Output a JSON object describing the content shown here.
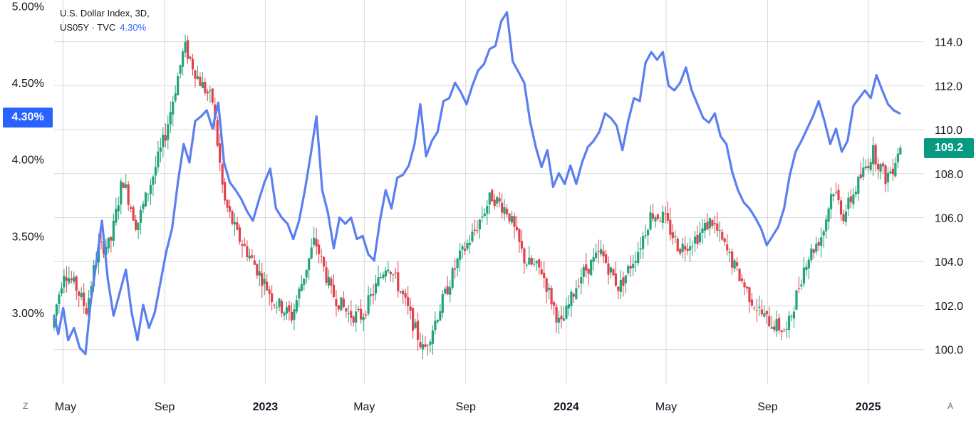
{
  "legend": {
    "line1": "U.S. Dollar Index, 3D,",
    "line2_prefix": "US05Y · TVC",
    "line2_value": "4.30%"
  },
  "badges": {
    "left_value": "4.30%",
    "right_value": "109.2"
  },
  "corners": {
    "left": "Z",
    "right": "A"
  },
  "colors": {
    "line": "#5b7ff0",
    "left_badge": "#2962ff",
    "right_badge": "#089981",
    "up": "#22a37b",
    "down": "#e0434d"
  },
  "chart_data": {
    "type": "candlestick+line",
    "x_ticks": [
      {
        "label": "May",
        "date": "2022-05-01"
      },
      {
        "label": "Sep",
        "date": "2022-09-01"
      },
      {
        "label": "2023",
        "date": "2023-01-01",
        "bold": true
      },
      {
        "label": "May",
        "date": "2023-05-01"
      },
      {
        "label": "Sep",
        "date": "2023-09-01"
      },
      {
        "label": "2024",
        "date": "2024-01-01",
        "bold": true
      },
      {
        "label": "May",
        "date": "2024-05-01"
      },
      {
        "label": "Sep",
        "date": "2024-09-01"
      },
      {
        "label": "2025",
        "date": "2025-01-01",
        "bold": true
      }
    ],
    "left_axis": {
      "series": "US05Y",
      "ticks": [
        "3.00%",
        "3.50%",
        "4.00%",
        "4.50%",
        "5.00%"
      ],
      "tick_values": [
        3.0,
        3.5,
        4.0,
        4.5,
        5.0
      ],
      "range": [
        2.53,
        5.04
      ]
    },
    "right_axis": {
      "series": "U.S. Dollar Index",
      "ticks": [
        "100.0",
        "102.0",
        "104.0",
        "106.0",
        "108.0",
        "110.0",
        "112.0",
        "114.0"
      ],
      "tick_values": [
        100,
        102,
        104,
        106,
        108,
        110,
        112,
        114
      ],
      "range": [
        98.4,
        115.9
      ]
    },
    "dxy_anchors": [
      [
        "2022-04-20",
        101.0
      ],
      [
        "2022-05-05",
        103.6
      ],
      [
        "2022-05-20",
        102.8
      ],
      [
        "2022-06-01",
        101.8
      ],
      [
        "2022-06-15",
        104.6
      ],
      [
        "2022-06-30",
        104.8
      ],
      [
        "2022-07-15",
        107.8
      ],
      [
        "2022-08-01",
        105.6
      ],
      [
        "2022-08-20",
        107.8
      ],
      [
        "2022-09-05",
        109.8
      ],
      [
        "2022-09-28",
        113.8
      ],
      [
        "2022-10-15",
        112.3
      ],
      [
        "2022-11-01",
        111.3
      ],
      [
        "2022-11-15",
        106.8
      ],
      [
        "2022-12-01",
        105.2
      ],
      [
        "2022-12-20",
        104.0
      ],
      [
        "2023-01-15",
        102.2
      ],
      [
        "2023-02-05",
        101.5
      ],
      [
        "2023-03-05",
        105.0
      ],
      [
        "2023-03-25",
        102.6
      ],
      [
        "2023-04-15",
        101.6
      ],
      [
        "2023-05-01",
        101.5
      ],
      [
        "2023-05-20",
        103.0
      ],
      [
        "2023-06-01",
        104.0
      ],
      [
        "2023-06-20",
        102.4
      ],
      [
        "2023-07-15",
        99.9
      ],
      [
        "2023-08-05",
        102.0
      ],
      [
        "2023-08-25",
        104.0
      ],
      [
        "2023-09-15",
        105.4
      ],
      [
        "2023-10-05",
        107.0
      ],
      [
        "2023-10-25",
        106.3
      ],
      [
        "2023-11-15",
        104.0
      ],
      [
        "2023-12-05",
        103.6
      ],
      [
        "2023-12-28",
        101.0
      ],
      [
        "2024-01-20",
        103.3
      ],
      [
        "2024-02-15",
        104.4
      ],
      [
        "2024-03-08",
        102.8
      ],
      [
        "2024-04-01",
        104.6
      ],
      [
        "2024-04-16",
        106.2
      ],
      [
        "2024-05-01",
        106.0
      ],
      [
        "2024-05-20",
        104.6
      ],
      [
        "2024-06-10",
        105.1
      ],
      [
        "2024-06-28",
        105.9
      ],
      [
        "2024-07-20",
        104.2
      ],
      [
        "2024-08-15",
        102.3
      ],
      [
        "2024-09-01",
        101.4
      ],
      [
        "2024-09-27",
        100.8
      ],
      [
        "2024-10-20",
        104.0
      ],
      [
        "2024-11-10",
        105.3
      ],
      [
        "2024-11-22",
        107.4
      ],
      [
        "2024-12-05",
        106.1
      ],
      [
        "2024-12-28",
        108.0
      ],
      [
        "2025-01-10",
        109.0
      ],
      [
        "2025-01-25",
        107.8
      ],
      [
        "2025-02-03",
        108.3
      ],
      [
        "2025-02-10",
        109.2
      ]
    ],
    "us05y": [
      [
        "2022-04-20",
        2.98
      ],
      [
        "2022-04-25",
        2.86
      ],
      [
        "2022-05-01",
        3.03
      ],
      [
        "2022-05-07",
        2.82
      ],
      [
        "2022-05-14",
        2.9
      ],
      [
        "2022-05-21",
        2.77
      ],
      [
        "2022-05-28",
        2.73
      ],
      [
        "2022-06-03",
        3.05
      ],
      [
        "2022-06-10",
        3.32
      ],
      [
        "2022-06-17",
        3.6
      ],
      [
        "2022-06-24",
        3.22
      ],
      [
        "2022-07-01",
        2.98
      ],
      [
        "2022-07-09",
        3.14
      ],
      [
        "2022-07-16",
        3.28
      ],
      [
        "2022-07-23",
        3.0
      ],
      [
        "2022-07-30",
        2.82
      ],
      [
        "2022-08-06",
        3.05
      ],
      [
        "2022-08-13",
        2.9
      ],
      [
        "2022-08-20",
        3.0
      ],
      [
        "2022-08-27",
        3.2
      ],
      [
        "2022-09-03",
        3.4
      ],
      [
        "2022-09-10",
        3.55
      ],
      [
        "2022-09-17",
        3.85
      ],
      [
        "2022-09-24",
        4.1
      ],
      [
        "2022-10-01",
        3.98
      ],
      [
        "2022-10-08",
        4.25
      ],
      [
        "2022-10-15",
        4.28
      ],
      [
        "2022-10-22",
        4.32
      ],
      [
        "2022-10-29",
        4.2
      ],
      [
        "2022-11-05",
        4.37
      ],
      [
        "2022-11-12",
        3.98
      ],
      [
        "2022-11-19",
        3.85
      ],
      [
        "2022-11-26",
        3.8
      ],
      [
        "2022-12-03",
        3.74
      ],
      [
        "2022-12-10",
        3.66
      ],
      [
        "2022-12-17",
        3.6
      ],
      [
        "2022-12-24",
        3.73
      ],
      [
        "2022-12-31",
        3.85
      ],
      [
        "2023-01-07",
        3.94
      ],
      [
        "2023-01-14",
        3.68
      ],
      [
        "2023-01-21",
        3.62
      ],
      [
        "2023-01-28",
        3.58
      ],
      [
        "2023-02-04",
        3.48
      ],
      [
        "2023-02-11",
        3.6
      ],
      [
        "2023-02-18",
        3.8
      ],
      [
        "2023-02-25",
        4.03
      ],
      [
        "2023-03-04",
        4.28
      ],
      [
        "2023-03-11",
        3.8
      ],
      [
        "2023-03-18",
        3.65
      ],
      [
        "2023-03-25",
        3.42
      ],
      [
        "2023-04-01",
        3.62
      ],
      [
        "2023-04-08",
        3.58
      ],
      [
        "2023-04-15",
        3.62
      ],
      [
        "2023-04-22",
        3.48
      ],
      [
        "2023-04-29",
        3.5
      ],
      [
        "2023-05-06",
        3.38
      ],
      [
        "2023-05-13",
        3.34
      ],
      [
        "2023-05-20",
        3.6
      ],
      [
        "2023-05-27",
        3.8
      ],
      [
        "2023-06-03",
        3.68
      ],
      [
        "2023-06-10",
        3.88
      ],
      [
        "2023-06-17",
        3.9
      ],
      [
        "2023-06-24",
        3.96
      ],
      [
        "2023-07-01",
        4.1
      ],
      [
        "2023-07-08",
        4.36
      ],
      [
        "2023-07-15",
        4.02
      ],
      [
        "2023-07-22",
        4.12
      ],
      [
        "2023-07-29",
        4.18
      ],
      [
        "2023-08-05",
        4.38
      ],
      [
        "2023-08-12",
        4.4
      ],
      [
        "2023-08-19",
        4.5
      ],
      [
        "2023-08-26",
        4.44
      ],
      [
        "2023-09-02",
        4.36
      ],
      [
        "2023-09-09",
        4.48
      ],
      [
        "2023-09-16",
        4.58
      ],
      [
        "2023-09-23",
        4.62
      ],
      [
        "2023-09-30",
        4.72
      ],
      [
        "2023-10-07",
        4.74
      ],
      [
        "2023-10-14",
        4.9
      ],
      [
        "2023-10-21",
        4.96
      ],
      [
        "2023-10-28",
        4.64
      ],
      [
        "2023-11-04",
        4.57
      ],
      [
        "2023-11-11",
        4.5
      ],
      [
        "2023-11-18",
        4.25
      ],
      [
        "2023-11-25",
        4.08
      ],
      [
        "2023-12-02",
        3.95
      ],
      [
        "2023-12-09",
        4.06
      ],
      [
        "2023-12-16",
        3.82
      ],
      [
        "2023-12-23",
        3.91
      ],
      [
        "2023-12-30",
        3.84
      ],
      [
        "2024-01-06",
        3.96
      ],
      [
        "2024-01-13",
        3.84
      ],
      [
        "2024-01-20",
        3.98
      ],
      [
        "2024-01-27",
        4.08
      ],
      [
        "2024-02-03",
        4.12
      ],
      [
        "2024-02-10",
        4.18
      ],
      [
        "2024-02-17",
        4.3
      ],
      [
        "2024-02-24",
        4.27
      ],
      [
        "2024-03-02",
        4.22
      ],
      [
        "2024-03-09",
        4.06
      ],
      [
        "2024-03-16",
        4.25
      ],
      [
        "2024-03-23",
        4.4
      ],
      [
        "2024-03-30",
        4.38
      ],
      [
        "2024-04-06",
        4.63
      ],
      [
        "2024-04-13",
        4.7
      ],
      [
        "2024-04-20",
        4.65
      ],
      [
        "2024-04-27",
        4.7
      ],
      [
        "2024-05-04",
        4.48
      ],
      [
        "2024-05-11",
        4.45
      ],
      [
        "2024-05-18",
        4.5
      ],
      [
        "2024-05-25",
        4.6
      ],
      [
        "2024-06-01",
        4.45
      ],
      [
        "2024-06-08",
        4.36
      ],
      [
        "2024-06-15",
        4.27
      ],
      [
        "2024-06-22",
        4.24
      ],
      [
        "2024-06-29",
        4.3
      ],
      [
        "2024-07-06",
        4.15
      ],
      [
        "2024-07-13",
        4.1
      ],
      [
        "2024-07-20",
        3.92
      ],
      [
        "2024-07-27",
        3.8
      ],
      [
        "2024-08-03",
        3.72
      ],
      [
        "2024-08-10",
        3.68
      ],
      [
        "2024-08-17",
        3.62
      ],
      [
        "2024-08-24",
        3.55
      ],
      [
        "2024-08-31",
        3.44
      ],
      [
        "2024-09-07",
        3.5
      ],
      [
        "2024-09-14",
        3.56
      ],
      [
        "2024-09-21",
        3.68
      ],
      [
        "2024-09-28",
        3.9
      ],
      [
        "2024-10-05",
        4.05
      ],
      [
        "2024-10-12",
        4.12
      ],
      [
        "2024-10-19",
        4.2
      ],
      [
        "2024-10-26",
        4.28
      ],
      [
        "2024-11-02",
        4.38
      ],
      [
        "2024-11-09",
        4.25
      ],
      [
        "2024-11-16",
        4.1
      ],
      [
        "2024-11-23",
        4.2
      ],
      [
        "2024-11-30",
        4.05
      ],
      [
        "2024-12-07",
        4.12
      ],
      [
        "2024-12-14",
        4.35
      ],
      [
        "2024-12-21",
        4.4
      ],
      [
        "2024-12-28",
        4.45
      ],
      [
        "2025-01-04",
        4.4
      ],
      [
        "2025-01-11",
        4.55
      ],
      [
        "2025-01-18",
        4.45
      ],
      [
        "2025-01-25",
        4.36
      ],
      [
        "2025-02-01",
        4.32
      ],
      [
        "2025-02-08",
        4.3
      ]
    ]
  }
}
